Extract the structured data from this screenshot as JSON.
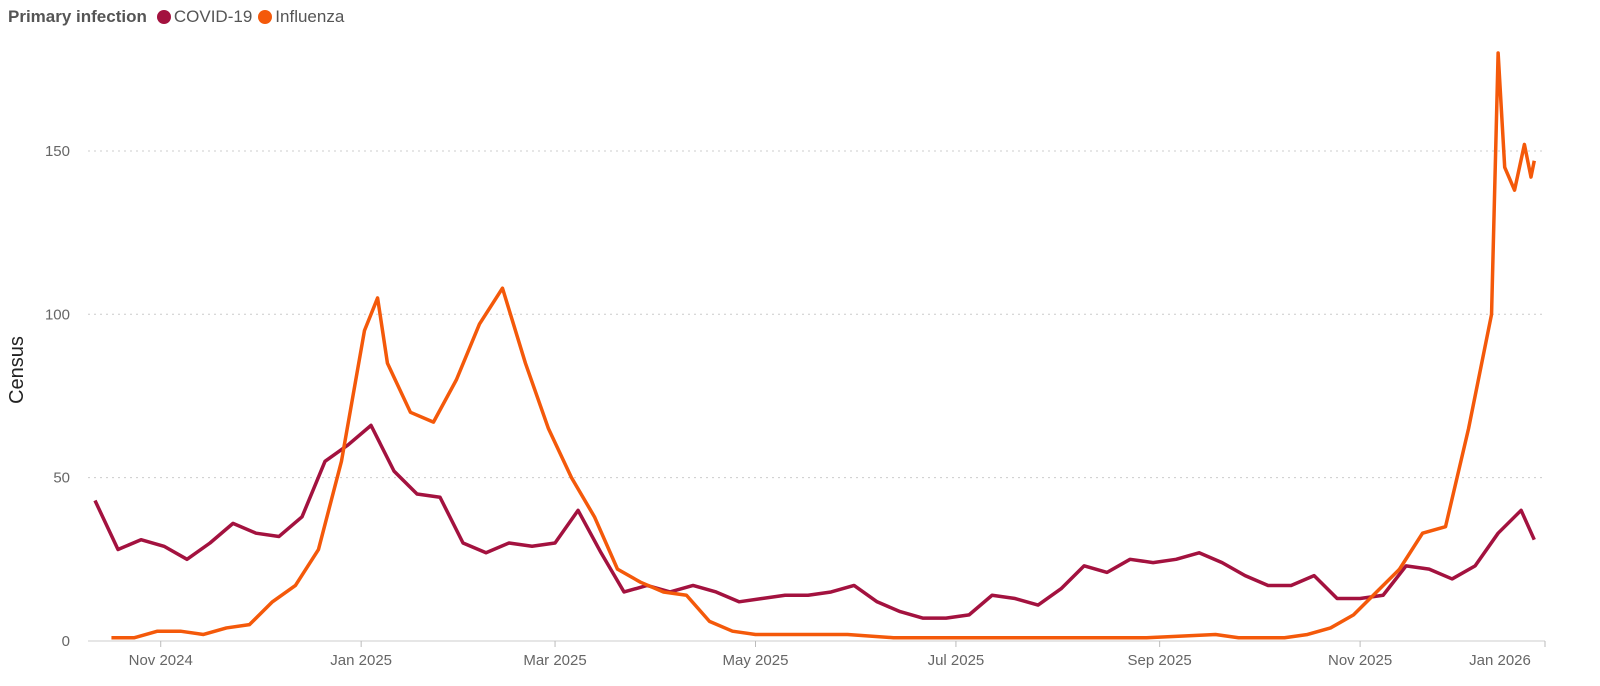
{
  "legend": {
    "title": "Primary infection",
    "items": [
      {
        "label": "COVID-19",
        "color": "#A3123F"
      },
      {
        "label": "Influenza",
        "color": "#F4590A"
      }
    ]
  },
  "chart_data": {
    "type": "line",
    "x_origin": "2024-10-12",
    "x_unit": "days since x_origin",
    "ylabel": "Census",
    "xlabel": "",
    "ylim": [
      0,
      180
    ],
    "yticks": [
      0,
      50,
      100,
      150
    ],
    "xticks": [
      {
        "day": 20,
        "label": "Nov 2024"
      },
      {
        "day": 81,
        "label": "Jan 2025"
      },
      {
        "day": 140,
        "label": "Mar 2025"
      },
      {
        "day": 201,
        "label": "May 2025"
      },
      {
        "day": 262,
        "label": "Jul 2025"
      },
      {
        "day": 324,
        "label": "Sep 2025"
      },
      {
        "day": 385,
        "label": "Nov 2025"
      },
      {
        "day": 446,
        "label": "Jan 2026"
      }
    ],
    "grid": "horizontal dotted",
    "series": [
      {
        "name": "COVID-19",
        "color": "#A3123F",
        "points": [
          [
            0,
            43
          ],
          [
            7,
            28
          ],
          [
            14,
            31
          ],
          [
            21,
            29
          ],
          [
            28,
            25
          ],
          [
            35,
            30
          ],
          [
            42,
            36
          ],
          [
            49,
            33
          ],
          [
            56,
            32
          ],
          [
            63,
            38
          ],
          [
            70,
            55
          ],
          [
            77,
            60
          ],
          [
            84,
            66
          ],
          [
            91,
            52
          ],
          [
            98,
            45
          ],
          [
            105,
            44
          ],
          [
            112,
            30
          ],
          [
            119,
            27
          ],
          [
            126,
            30
          ],
          [
            133,
            29
          ],
          [
            140,
            30
          ],
          [
            147,
            40
          ],
          [
            154,
            27
          ],
          [
            161,
            15
          ],
          [
            168,
            17
          ],
          [
            175,
            15
          ],
          [
            182,
            17
          ],
          [
            189,
            15
          ],
          [
            196,
            12
          ],
          [
            203,
            13
          ],
          [
            210,
            14
          ],
          [
            217,
            14
          ],
          [
            224,
            15
          ],
          [
            231,
            17
          ],
          [
            238,
            12
          ],
          [
            245,
            9
          ],
          [
            252,
            7
          ],
          [
            259,
            7
          ],
          [
            266,
            8
          ],
          [
            273,
            14
          ],
          [
            280,
            13
          ],
          [
            287,
            11
          ],
          [
            294,
            16
          ],
          [
            301,
            23
          ],
          [
            308,
            21
          ],
          [
            315,
            25
          ],
          [
            322,
            24
          ],
          [
            329,
            25
          ],
          [
            336,
            27
          ],
          [
            343,
            24
          ],
          [
            350,
            20
          ],
          [
            357,
            17
          ],
          [
            364,
            17
          ],
          [
            371,
            20
          ],
          [
            378,
            13
          ],
          [
            385,
            13
          ],
          [
            392,
            14
          ],
          [
            399,
            23
          ],
          [
            406,
            22
          ],
          [
            413,
            19
          ],
          [
            420,
            23
          ],
          [
            427,
            33
          ],
          [
            434,
            40
          ],
          [
            438,
            31
          ]
        ]
      },
      {
        "name": "Influenza",
        "color": "#F4590A",
        "points": [
          [
            5,
            1
          ],
          [
            12,
            1
          ],
          [
            19,
            3
          ],
          [
            26,
            3
          ],
          [
            33,
            2
          ],
          [
            40,
            4
          ],
          [
            47,
            5
          ],
          [
            54,
            12
          ],
          [
            61,
            17
          ],
          [
            68,
            28
          ],
          [
            75,
            55
          ],
          [
            82,
            95
          ],
          [
            86,
            105
          ],
          [
            89,
            85
          ],
          [
            96,
            70
          ],
          [
            103,
            67
          ],
          [
            110,
            80
          ],
          [
            117,
            97
          ],
          [
            124,
            108
          ],
          [
            131,
            85
          ],
          [
            138,
            65
          ],
          [
            145,
            50
          ],
          [
            152,
            38
          ],
          [
            159,
            22
          ],
          [
            166,
            18
          ],
          [
            173,
            15
          ],
          [
            180,
            14
          ],
          [
            187,
            6
          ],
          [
            194,
            3
          ],
          [
            201,
            2
          ],
          [
            215,
            2
          ],
          [
            229,
            2
          ],
          [
            243,
            1
          ],
          [
            270,
            1
          ],
          [
            300,
            1
          ],
          [
            320,
            1
          ],
          [
            341,
            2
          ],
          [
            348,
            1
          ],
          [
            362,
            1
          ],
          [
            369,
            2
          ],
          [
            376,
            4
          ],
          [
            383,
            8
          ],
          [
            390,
            15
          ],
          [
            397,
            22
          ],
          [
            404,
            33
          ],
          [
            411,
            35
          ],
          [
            418,
            65
          ],
          [
            425,
            100
          ],
          [
            427,
            180
          ],
          [
            429,
            145
          ],
          [
            432,
            138
          ],
          [
            435,
            152
          ],
          [
            437,
            142
          ],
          [
            438,
            147
          ]
        ]
      }
    ]
  }
}
